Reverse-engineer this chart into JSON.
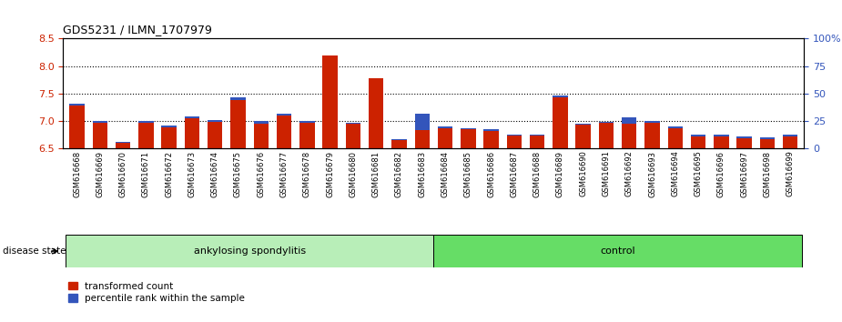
{
  "title": "GDS5231 / ILMN_1707979",
  "samples": [
    "GSM616668",
    "GSM616669",
    "GSM616670",
    "GSM616671",
    "GSM616672",
    "GSM616673",
    "GSM616674",
    "GSM616675",
    "GSM616676",
    "GSM616677",
    "GSM616678",
    "GSM616679",
    "GSM616680",
    "GSM616681",
    "GSM616682",
    "GSM616683",
    "GSM616684",
    "GSM616685",
    "GSM616686",
    "GSM616687",
    "GSM616688",
    "GSM616689",
    "GSM616690",
    "GSM616691",
    "GSM616692",
    "GSM616693",
    "GSM616694",
    "GSM616695",
    "GSM616696",
    "GSM616697",
    "GSM616698",
    "GSM616699"
  ],
  "red_values": [
    7.28,
    6.97,
    6.6,
    6.97,
    6.88,
    7.05,
    6.98,
    7.38,
    6.95,
    7.1,
    6.97,
    8.2,
    6.95,
    7.77,
    6.65,
    6.83,
    6.87,
    6.85,
    6.82,
    6.73,
    6.73,
    7.42,
    6.93,
    6.96,
    6.95,
    6.97,
    6.86,
    6.72,
    6.72,
    6.68,
    6.67,
    6.72
  ],
  "blue_values": [
    7.31,
    6.99,
    6.61,
    6.99,
    6.91,
    7.08,
    7.02,
    7.42,
    7.0,
    7.13,
    7.0,
    7.73,
    6.97,
    7.57,
    6.67,
    7.13,
    6.9,
    6.87,
    6.85,
    6.75,
    6.75,
    7.46,
    6.95,
    6.98,
    7.06,
    6.99,
    6.89,
    6.75,
    6.75,
    6.71,
    6.7,
    6.75
  ],
  "group_labels": [
    "ankylosing spondylitis",
    "control"
  ],
  "group_split": 16,
  "n_samples": 32,
  "ylim": [
    6.5,
    8.5
  ],
  "y_left_ticks": [
    6.5,
    7.0,
    7.5,
    8.0,
    8.5
  ],
  "y_right_ticks": [
    0,
    25,
    50,
    75,
    100
  ],
  "y_right_tick_labels": [
    "0",
    "25",
    "50",
    "75",
    "100%"
  ],
  "dotted_lines": [
    7.0,
    7.5,
    8.0
  ],
  "bar_color": "#CC2200",
  "blue_color": "#3355BB",
  "bar_width": 0.65,
  "disease_state_label": "disease state",
  "legend_items": [
    "transformed count",
    "percentile rank within the sample"
  ],
  "group_color_1": "#B8EEB8",
  "group_color_2": "#66DD66",
  "fig_bg": "#F0F0F0"
}
